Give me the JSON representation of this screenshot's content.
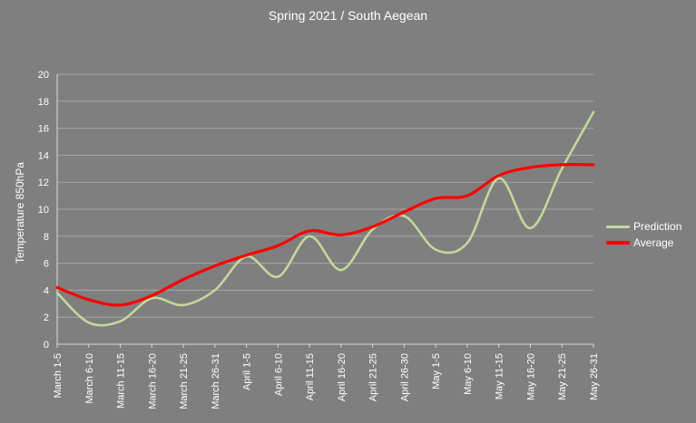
{
  "chart_data": {
    "type": "line",
    "title": "Spring 2021 / South Aegean",
    "xlabel": "",
    "ylabel": "Temperature 850hPa",
    "ylim": [
      0,
      20
    ],
    "yticks": [
      "0",
      "2",
      "4",
      "6",
      "8",
      "10",
      "12",
      "14",
      "16",
      "18",
      "20"
    ],
    "grid": true,
    "legend_position": "right",
    "categories": [
      "March 1-5",
      "March 6-10",
      "March 11-15",
      "March 16-20",
      "March 21-25",
      "March 26-31",
      "April 1-5",
      "April 6-10",
      "April 11-15",
      "April 16-20",
      "April 21-25",
      "April 26-30",
      "May 1-5",
      "May 6-10",
      "May 11-15",
      "May 16-20",
      "May 21-25",
      "May 26-31"
    ],
    "series": [
      {
        "name": "Prediction",
        "color": "#c4d79b",
        "values": [
          3.8,
          1.6,
          1.7,
          3.4,
          2.9,
          4.0,
          6.5,
          5.0,
          8.0,
          5.5,
          8.5,
          9.5,
          7.0,
          7.5,
          12.3,
          8.6,
          13.0,
          17.2
        ]
      },
      {
        "name": "Average",
        "color": "#ff0000",
        "values": [
          4.2,
          3.3,
          2.9,
          3.6,
          4.8,
          5.8,
          6.6,
          7.3,
          8.4,
          8.1,
          8.7,
          9.8,
          10.8,
          11.0,
          12.5,
          13.1,
          13.3,
          13.3
        ]
      }
    ]
  }
}
